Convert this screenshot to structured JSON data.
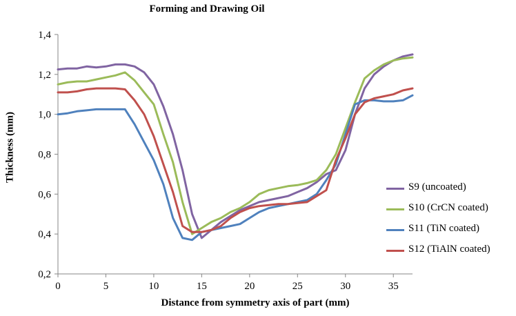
{
  "chart_data": {
    "type": "line",
    "title": "Forming and Drawing Oil",
    "xlabel": "Distance from symmetry axis of part (mm)",
    "ylabel": "Thickness (mm)",
    "xlim": [
      0,
      37
    ],
    "ylim": [
      0.2,
      1.4
    ],
    "xticks": [
      "0",
      "5",
      "10",
      "15",
      "20",
      "25",
      "30",
      "35"
    ],
    "yticks": [
      "0,2",
      "0,4",
      "0,6",
      "0,8",
      "1,0",
      "1,2",
      "1,4"
    ],
    "grid": false,
    "legend_position": "right",
    "x": [
      0,
      1,
      2,
      3,
      4,
      5,
      6,
      7,
      8,
      9,
      10,
      11,
      12,
      13,
      14,
      15,
      16,
      17,
      18,
      19,
      20,
      21,
      22,
      23,
      24,
      25,
      26,
      27,
      28,
      29,
      30,
      31,
      32,
      33,
      34,
      35,
      36,
      37
    ],
    "series": [
      {
        "name": "S9 (uncoated)",
        "color": "#8064a2",
        "values": [
          1.225,
          1.23,
          1.23,
          1.24,
          1.235,
          1.24,
          1.25,
          1.25,
          1.24,
          1.21,
          1.15,
          1.04,
          0.9,
          0.72,
          0.5,
          0.38,
          0.42,
          0.46,
          0.49,
          0.52,
          0.54,
          0.56,
          0.57,
          0.58,
          0.59,
          0.61,
          0.63,
          0.66,
          0.7,
          0.72,
          0.82,
          1.0,
          1.13,
          1.2,
          1.24,
          1.27,
          1.29,
          1.3
        ]
      },
      {
        "name": "S10 (CrCN coated)",
        "color": "#9bbb59",
        "values": [
          1.15,
          1.16,
          1.165,
          1.165,
          1.175,
          1.185,
          1.195,
          1.21,
          1.17,
          1.11,
          1.05,
          0.9,
          0.76,
          0.56,
          0.4,
          0.43,
          0.46,
          0.48,
          0.51,
          0.53,
          0.56,
          0.6,
          0.62,
          0.63,
          0.64,
          0.645,
          0.655,
          0.67,
          0.72,
          0.8,
          0.93,
          1.06,
          1.18,
          1.22,
          1.25,
          1.27,
          1.28,
          1.285
        ]
      },
      {
        "name": "S11 (TiN coated)",
        "color": "#4f81bd",
        "values": [
          1.0,
          1.005,
          1.015,
          1.02,
          1.025,
          1.025,
          1.025,
          1.025,
          0.95,
          0.86,
          0.77,
          0.65,
          0.48,
          0.38,
          0.37,
          0.41,
          0.42,
          0.43,
          0.44,
          0.45,
          0.48,
          0.51,
          0.53,
          0.54,
          0.55,
          0.56,
          0.57,
          0.6,
          0.67,
          0.75,
          0.9,
          1.05,
          1.07,
          1.07,
          1.065,
          1.065,
          1.07,
          1.095
        ]
      },
      {
        "name": "S12 (TiAlN coated)",
        "color": "#c0504d",
        "values": [
          1.11,
          1.11,
          1.115,
          1.125,
          1.13,
          1.13,
          1.13,
          1.125,
          1.07,
          1.0,
          0.89,
          0.75,
          0.61,
          0.44,
          0.41,
          0.41,
          0.42,
          0.44,
          0.48,
          0.51,
          0.53,
          0.54,
          0.545,
          0.55,
          0.55,
          0.555,
          0.56,
          0.59,
          0.62,
          0.77,
          0.88,
          1.0,
          1.06,
          1.08,
          1.09,
          1.1,
          1.12,
          1.13
        ]
      }
    ]
  }
}
